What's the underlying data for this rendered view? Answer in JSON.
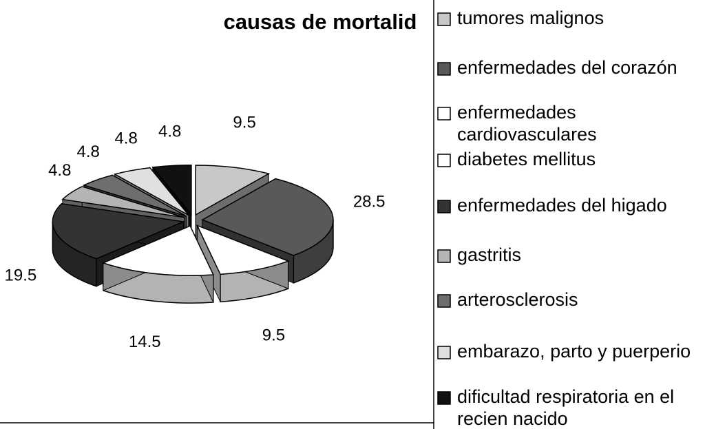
{
  "chart_data": {
    "type": "pie3d",
    "title": "causas de mortalid",
    "categories": [
      "tumores malignos",
      "enfermedades del corazón",
      "enfermedades cardiovasculares",
      "diabetes mellitus",
      "enfermedades del higado",
      "gastritis",
      "arterosclerosis",
      "embarazo, parto y puerperio",
      "dificultad respiratoria en el recien nacido"
    ],
    "values": [
      9.5,
      28.5,
      9.5,
      14.5,
      19.5,
      4.8,
      4.8,
      4.8,
      4.8
    ],
    "colors": [
      "#c8c8c8",
      "#595959",
      "#ffffff",
      "#ffffff",
      "#333333",
      "#b4b4b4",
      "#6e6e6e",
      "#e0e0e0",
      "#111111"
    ],
    "legend": "right"
  }
}
